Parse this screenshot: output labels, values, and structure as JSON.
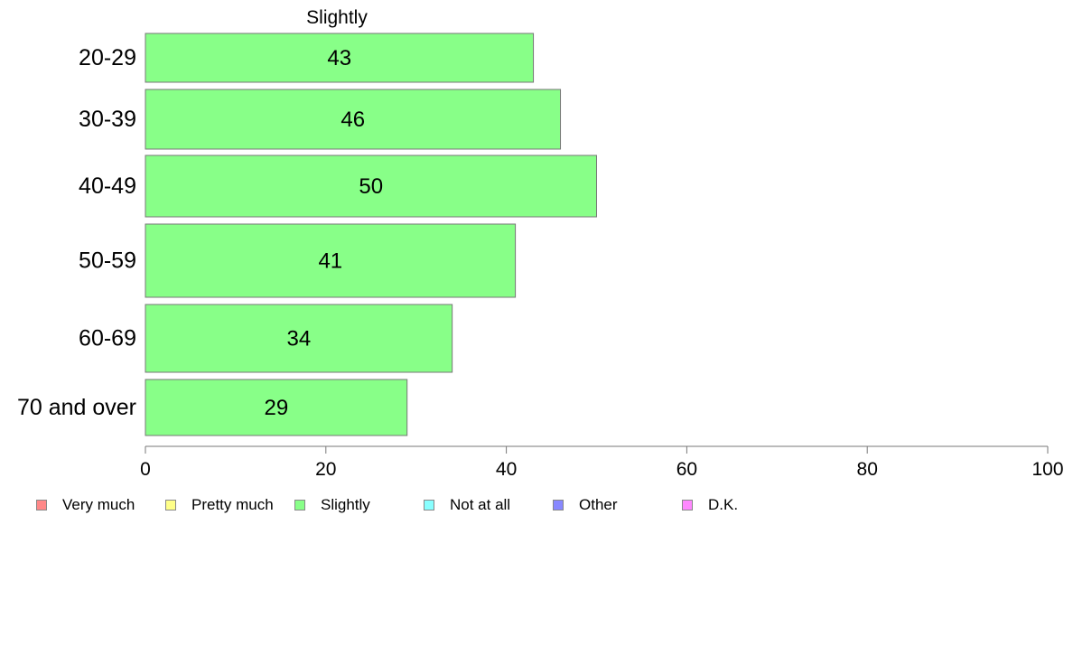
{
  "chart_data": {
    "type": "bar",
    "orientation": "horizontal",
    "title": "Slightly",
    "categories": [
      "20-29",
      "30-39",
      "40-49",
      "50-59",
      "60-69",
      "70 and over"
    ],
    "series": [
      {
        "name": "Slightly",
        "values": [
          43,
          46,
          50,
          41,
          34,
          29
        ],
        "color": "#88ff88"
      }
    ],
    "xlim": [
      0,
      100
    ],
    "xticks": [
      0,
      20,
      40,
      60,
      80,
      100
    ],
    "grid": false,
    "legend_position": "bottom-left",
    "legend": [
      {
        "label": "Very much",
        "color": "#ff8888"
      },
      {
        "label": "Pretty much",
        "color": "#ffff88"
      },
      {
        "label": "Slightly",
        "color": "#88ff88"
      },
      {
        "label": "Not at all",
        "color": "#88ffff"
      },
      {
        "label": "Other",
        "color": "#8888ff"
      },
      {
        "label": "D.K.",
        "color": "#ff88ff"
      }
    ]
  }
}
